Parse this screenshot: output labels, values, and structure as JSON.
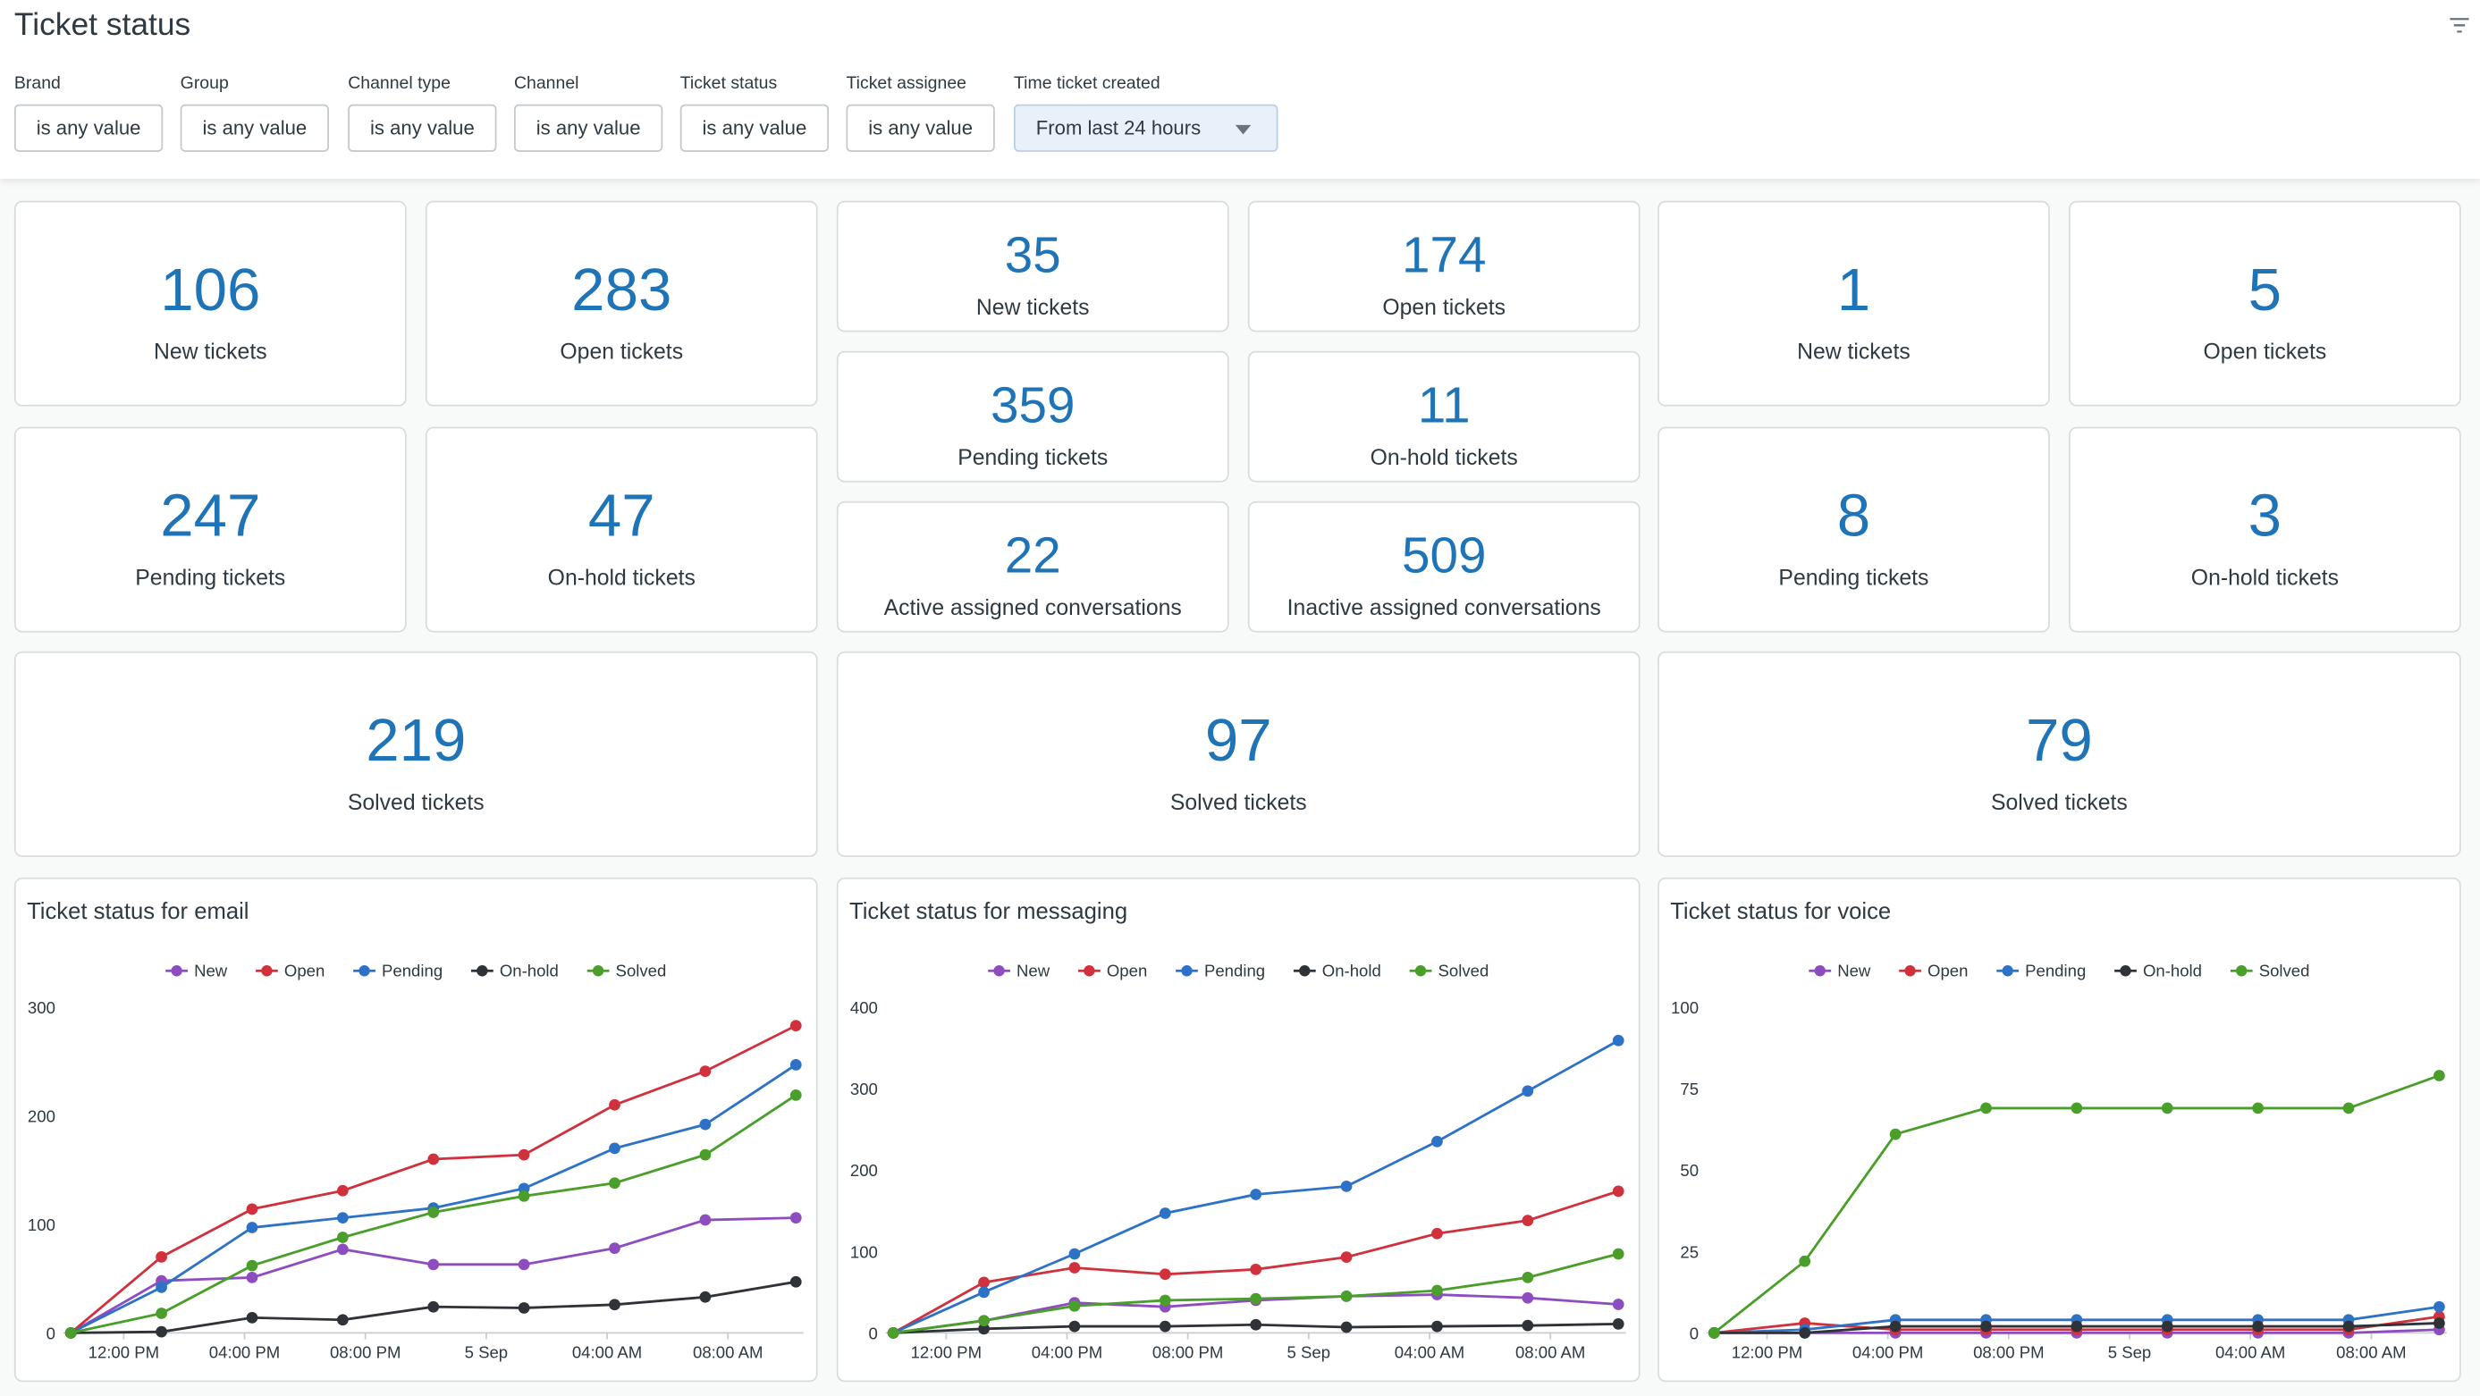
{
  "header": {
    "title": "Ticket status"
  },
  "filters": [
    {
      "label": "Brand",
      "value": "is any value"
    },
    {
      "label": "Group",
      "value": "is any value"
    },
    {
      "label": "Channel type",
      "value": "is any value"
    },
    {
      "label": "Channel",
      "value": "is any value"
    },
    {
      "label": "Ticket status",
      "value": "is any value"
    },
    {
      "label": "Ticket assignee",
      "value": "is any value"
    },
    {
      "label": "Time ticket created",
      "value": "From last 24 hours"
    }
  ],
  "kpi_groups": [
    {
      "cards": [
        {
          "value": "106",
          "label": "New tickets"
        },
        {
          "value": "283",
          "label": "Open tickets"
        },
        {
          "value": "247",
          "label": "Pending tickets"
        },
        {
          "value": "47",
          "label": "On-hold tickets"
        },
        {
          "value": "219",
          "label": "Solved tickets"
        }
      ]
    },
    {
      "cards": [
        {
          "value": "35",
          "label": "New tickets"
        },
        {
          "value": "174",
          "label": "Open tickets"
        },
        {
          "value": "359",
          "label": "Pending tickets"
        },
        {
          "value": "11",
          "label": "On-hold tickets"
        },
        {
          "value": "22",
          "label": "Active assigned conversations"
        },
        {
          "value": "509",
          "label": "Inactive assigned conversations"
        },
        {
          "value": "97",
          "label": "Solved tickets"
        }
      ]
    },
    {
      "cards": [
        {
          "value": "1",
          "label": "New tickets"
        },
        {
          "value": "5",
          "label": "Open tickets"
        },
        {
          "value": "8",
          "label": "Pending tickets"
        },
        {
          "value": "3",
          "label": "On-hold tickets"
        },
        {
          "value": "79",
          "label": "Solved tickets"
        }
      ]
    }
  ],
  "chart_data": [
    {
      "type": "line",
      "title": "Ticket status for email",
      "x": [
        10.25,
        13.25,
        16.25,
        19.25,
        22.25,
        25.25,
        28.25,
        31.25,
        34.25
      ],
      "xlim": [
        10,
        34.5
      ],
      "xticks": [
        {
          "value": 12,
          "label": "12:00 PM"
        },
        {
          "value": 16,
          "label": "04:00 PM"
        },
        {
          "value": 20,
          "label": "08:00 PM"
        },
        {
          "value": 24,
          "label": "5 Sep"
        },
        {
          "value": 28,
          "label": "04:00 AM"
        },
        {
          "value": 32,
          "label": "08:00 AM"
        }
      ],
      "ylim": [
        0,
        300
      ],
      "yticks": [
        0,
        100,
        200,
        300
      ],
      "legend": "top",
      "series": [
        {
          "name": "New",
          "color": "#8e4dbf",
          "values": [
            0,
            48,
            51,
            77,
            63,
            63,
            78,
            104,
            106
          ]
        },
        {
          "name": "Open",
          "color": "#d0313d",
          "values": [
            0,
            70,
            114,
            131,
            160,
            164,
            210,
            241,
            283
          ]
        },
        {
          "name": "Pending",
          "color": "#2d72c6",
          "values": [
            0,
            42,
            97,
            106,
            115,
            133,
            170,
            192,
            247
          ]
        },
        {
          "name": "On-hold",
          "color": "#2f3237",
          "values": [
            0,
            1,
            14,
            12,
            24,
            23,
            26,
            33,
            47
          ]
        },
        {
          "name": "Solved",
          "color": "#4a9e2a",
          "values": [
            0,
            18,
            62,
            88,
            111,
            126,
            138,
            164,
            219
          ]
        }
      ]
    },
    {
      "type": "line",
      "title": "Ticket status for messaging",
      "x": [
        10.25,
        13.25,
        16.25,
        19.25,
        22.25,
        25.25,
        28.25,
        31.25,
        34.25
      ],
      "xlim": [
        10,
        34.5
      ],
      "xticks": [
        {
          "value": 12,
          "label": "12:00 PM"
        },
        {
          "value": 16,
          "label": "04:00 PM"
        },
        {
          "value": 20,
          "label": "08:00 PM"
        },
        {
          "value": 24,
          "label": "5 Sep"
        },
        {
          "value": 28,
          "label": "04:00 AM"
        },
        {
          "value": 32,
          "label": "08:00 AM"
        }
      ],
      "ylim": [
        0,
        400
      ],
      "yticks": [
        0,
        100,
        200,
        300,
        400
      ],
      "legend": "top",
      "series": [
        {
          "name": "New",
          "color": "#8e4dbf",
          "values": [
            0,
            15,
            37,
            32,
            40,
            45,
            47,
            43,
            35
          ]
        },
        {
          "name": "Open",
          "color": "#d0313d",
          "values": [
            0,
            62,
            80,
            72,
            78,
            93,
            122,
            138,
            174
          ]
        },
        {
          "name": "Pending",
          "color": "#2d72c6",
          "values": [
            0,
            50,
            97,
            147,
            170,
            180,
            235,
            297,
            359
          ]
        },
        {
          "name": "On-hold",
          "color": "#2f3237",
          "values": [
            0,
            5,
            8,
            8,
            10,
            7,
            8,
            9,
            11
          ]
        },
        {
          "name": "Solved",
          "color": "#4a9e2a",
          "values": [
            0,
            15,
            33,
            40,
            42,
            45,
            52,
            68,
            97
          ]
        }
      ]
    },
    {
      "type": "line",
      "title": "Ticket status for voice",
      "x": [
        10.25,
        13.25,
        16.25,
        19.25,
        22.25,
        25.25,
        28.25,
        31.25,
        34.25
      ],
      "xlim": [
        10,
        34.5
      ],
      "xticks": [
        {
          "value": 12,
          "label": "12:00 PM"
        },
        {
          "value": 16,
          "label": "04:00 PM"
        },
        {
          "value": 20,
          "label": "08:00 PM"
        },
        {
          "value": 24,
          "label": "5 Sep"
        },
        {
          "value": 28,
          "label": "04:00 AM"
        },
        {
          "value": 32,
          "label": "08:00 AM"
        }
      ],
      "ylim": [
        0,
        100
      ],
      "yticks": [
        0,
        25,
        50,
        75,
        100
      ],
      "legend": "top",
      "series": [
        {
          "name": "New",
          "color": "#8e4dbf",
          "values": [
            0,
            0,
            0,
            0,
            0,
            0,
            0,
            0,
            1
          ]
        },
        {
          "name": "Open",
          "color": "#d0313d",
          "values": [
            0,
            3,
            1,
            1,
            1,
            1,
            1,
            1,
            5
          ]
        },
        {
          "name": "Pending",
          "color": "#2d72c6",
          "values": [
            0,
            1,
            4,
            4,
            4,
            4,
            4,
            4,
            8
          ]
        },
        {
          "name": "On-hold",
          "color": "#2f3237",
          "values": [
            0,
            0,
            2,
            2,
            2,
            2,
            2,
            2,
            3
          ]
        },
        {
          "name": "Solved",
          "color": "#4a9e2a",
          "values": [
            0,
            22,
            61,
            69,
            69,
            69,
            69,
            69,
            79
          ]
        }
      ]
    }
  ]
}
